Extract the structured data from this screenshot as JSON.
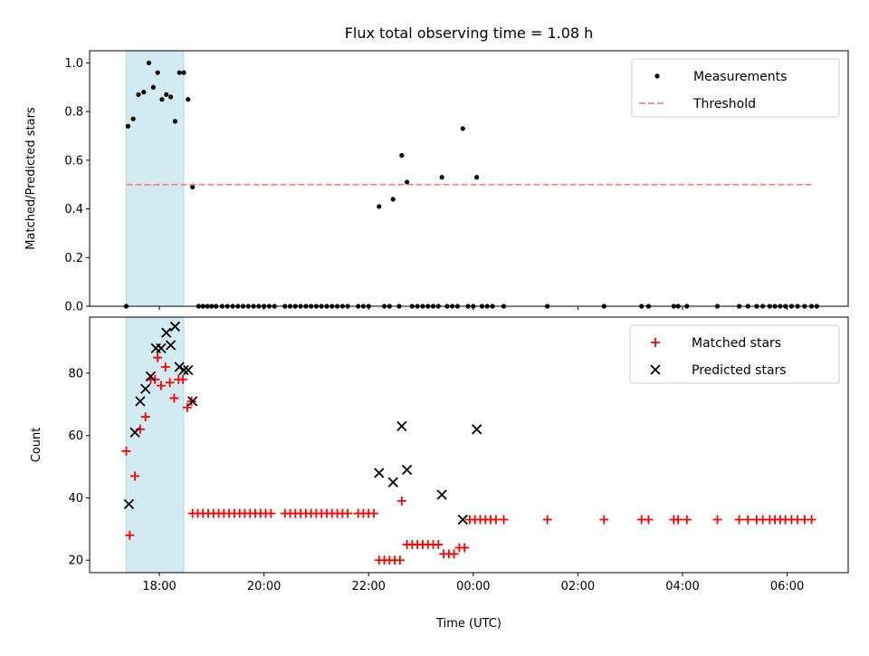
{
  "chart_data": {
    "title": "Flux total observing time = 1.08 h",
    "shaded_window": {
      "x0": "17:22",
      "x1": "18:28",
      "color": "#add8e6"
    },
    "x_axis": {
      "label": "Time (UTC)",
      "range": [
        "16:40",
        "07:10"
      ],
      "ticks": [
        "18:00",
        "20:00",
        "22:00",
        "00:00",
        "02:00",
        "04:00",
        "06:00"
      ]
    },
    "panels": [
      {
        "type": "scatter",
        "ylabel": "Matched/Predicted stars",
        "ylim": [
          0,
          1.05
        ],
        "yticks": [
          "0.0",
          "0.2",
          "0.4",
          "0.6",
          "0.8",
          "1.0"
        ],
        "legend_position": "top-right",
        "series": [
          {
            "name": "Measurements",
            "marker": "dot",
            "color": "#000000",
            "points": [
              [
                "17:22",
                0
              ],
              [
                "17:24",
                0.74
              ],
              [
                "17:30",
                0.77
              ],
              [
                "17:36",
                0.87
              ],
              [
                "17:42",
                0.88
              ],
              [
                "17:48",
                1.0
              ],
              [
                "17:53",
                0.9
              ],
              [
                "17:58",
                0.96
              ],
              [
                "18:03",
                0.85
              ],
              [
                "18:08",
                0.87
              ],
              [
                "18:13",
                0.86
              ],
              [
                "18:18",
                0.76
              ],
              [
                "18:23",
                0.96
              ],
              [
                "18:28",
                0.96
              ],
              [
                "18:33",
                0.85
              ],
              [
                "18:38",
                0.49
              ],
              [
                "18:45",
                0
              ],
              [
                "18:50",
                0
              ],
              [
                "18:55",
                0
              ],
              [
                "19:00",
                0
              ],
              [
                "19:05",
                0
              ],
              [
                "19:12",
                0
              ],
              [
                "19:18",
                0
              ],
              [
                "19:24",
                0
              ],
              [
                "19:30",
                0
              ],
              [
                "19:36",
                0
              ],
              [
                "19:42",
                0
              ],
              [
                "19:48",
                0
              ],
              [
                "19:54",
                0
              ],
              [
                "20:00",
                0
              ],
              [
                "20:06",
                0
              ],
              [
                "20:12",
                0
              ],
              [
                "20:24",
                0
              ],
              [
                "20:30",
                0
              ],
              [
                "20:36",
                0
              ],
              [
                "20:42",
                0
              ],
              [
                "20:48",
                0
              ],
              [
                "20:54",
                0
              ],
              [
                "21:00",
                0
              ],
              [
                "21:06",
                0
              ],
              [
                "21:12",
                0
              ],
              [
                "21:18",
                0
              ],
              [
                "21:24",
                0
              ],
              [
                "21:30",
                0
              ],
              [
                "21:36",
                0
              ],
              [
                "21:48",
                0
              ],
              [
                "21:54",
                0
              ],
              [
                "22:00",
                0
              ],
              [
                "22:12",
                0.41
              ],
              [
                "22:18",
                0
              ],
              [
                "22:24",
                0
              ],
              [
                "22:28",
                0.44
              ],
              [
                "22:35",
                0
              ],
              [
                "22:38",
                0.62
              ],
              [
                "22:44",
                0.51
              ],
              [
                "22:50",
                0
              ],
              [
                "22:56",
                0
              ],
              [
                "23:02",
                0
              ],
              [
                "23:08",
                0
              ],
              [
                "23:14",
                0
              ],
              [
                "23:20",
                0
              ],
              [
                "23:24",
                0.53
              ],
              [
                "23:30",
                0
              ],
              [
                "23:36",
                0
              ],
              [
                "23:42",
                0
              ],
              [
                "23:48",
                0.73
              ],
              [
                "23:54",
                0
              ],
              [
                "24:00",
                0
              ],
              [
                "24:04",
                0.53
              ],
              [
                "24:10",
                0
              ],
              [
                "24:16",
                0
              ],
              [
                "24:22",
                0
              ],
              [
                "24:35",
                0
              ],
              [
                "25:25",
                0
              ],
              [
                "26:30",
                0
              ],
              [
                "27:13",
                0
              ],
              [
                "27:21",
                0
              ],
              [
                "27:50",
                0
              ],
              [
                "27:55",
                0
              ],
              [
                "28:05",
                0
              ],
              [
                "28:40",
                0
              ],
              [
                "29:05",
                0
              ],
              [
                "29:15",
                0
              ],
              [
                "29:25",
                0
              ],
              [
                "29:32",
                0
              ],
              [
                "29:40",
                0
              ],
              [
                "29:46",
                0
              ],
              [
                "29:52",
                0
              ],
              [
                "29:58",
                0
              ],
              [
                "30:05",
                0
              ],
              [
                "30:12",
                0
              ],
              [
                "30:20",
                0
              ],
              [
                "30:28",
                0
              ],
              [
                "30:34",
                0
              ]
            ]
          },
          {
            "name": "Threshold",
            "style": "dashed",
            "color": "#ff7f7f",
            "points": [
              [
                "17:22",
                0.5
              ],
              [
                "30:28",
                0.5
              ]
            ]
          }
        ]
      },
      {
        "type": "scatter",
        "ylabel": "Count",
        "ylim": [
          16,
          98
        ],
        "yticks": [
          "20",
          "40",
          "60",
          "80"
        ],
        "legend_position": "top-right",
        "series": [
          {
            "name": "Matched stars",
            "marker": "plus",
            "color": "#ff0000",
            "points": [
              [
                "17:22",
                55
              ],
              [
                "17:26",
                28
              ],
              [
                "17:32",
                47
              ],
              [
                "17:38",
                62
              ],
              [
                "17:44",
                66
              ],
              [
                "17:50",
                78
              ],
              [
                "17:55",
                78
              ],
              [
                "17:58",
                85
              ],
              [
                "18:02",
                76
              ],
              [
                "18:07",
                82
              ],
              [
                "18:12",
                77
              ],
              [
                "18:17",
                72
              ],
              [
                "18:22",
                78
              ],
              [
                "18:27",
                78
              ],
              [
                "18:32",
                69
              ],
              [
                "18:37",
                71
              ],
              [
                "18:38",
                35
              ],
              [
                "18:44",
                35
              ],
              [
                "18:50",
                35
              ],
              [
                "18:56",
                35
              ],
              [
                "19:02",
                35
              ],
              [
                "19:08",
                35
              ],
              [
                "19:14",
                35
              ],
              [
                "19:20",
                35
              ],
              [
                "19:26",
                35
              ],
              [
                "19:32",
                35
              ],
              [
                "19:38",
                35
              ],
              [
                "19:44",
                35
              ],
              [
                "19:50",
                35
              ],
              [
                "19:56",
                35
              ],
              [
                "20:02",
                35
              ],
              [
                "20:08",
                35
              ],
              [
                "20:24",
                35
              ],
              [
                "20:30",
                35
              ],
              [
                "20:36",
                35
              ],
              [
                "20:42",
                35
              ],
              [
                "20:48",
                35
              ],
              [
                "20:54",
                35
              ],
              [
                "21:00",
                35
              ],
              [
                "21:06",
                35
              ],
              [
                "21:12",
                35
              ],
              [
                "21:18",
                35
              ],
              [
                "21:24",
                35
              ],
              [
                "21:30",
                35
              ],
              [
                "21:36",
                35
              ],
              [
                "21:48",
                35
              ],
              [
                "21:54",
                35
              ],
              [
                "22:00",
                35
              ],
              [
                "22:06",
                35
              ],
              [
                "22:12",
                20
              ],
              [
                "22:18",
                20
              ],
              [
                "22:24",
                20
              ],
              [
                "22:30",
                20
              ],
              [
                "22:36",
                20
              ],
              [
                "22:38",
                39
              ],
              [
                "22:44",
                25
              ],
              [
                "22:50",
                25
              ],
              [
                "22:56",
                25
              ],
              [
                "23:02",
                25
              ],
              [
                "23:08",
                25
              ],
              [
                "23:14",
                25
              ],
              [
                "23:20",
                25
              ],
              [
                "23:26",
                22
              ],
              [
                "23:32",
                22
              ],
              [
                "23:38",
                22
              ],
              [
                "23:44",
                24
              ],
              [
                "23:50",
                24
              ],
              [
                "23:56",
                33
              ],
              [
                "24:02",
                33
              ],
              [
                "24:08",
                33
              ],
              [
                "24:14",
                33
              ],
              [
                "24:20",
                33
              ],
              [
                "24:26",
                33
              ],
              [
                "24:35",
                33
              ],
              [
                "25:25",
                33
              ],
              [
                "26:30",
                33
              ],
              [
                "27:13",
                33
              ],
              [
                "27:21",
                33
              ],
              [
                "27:50",
                33
              ],
              [
                "27:55",
                33
              ],
              [
                "28:05",
                33
              ],
              [
                "28:40",
                33
              ],
              [
                "29:05",
                33
              ],
              [
                "29:15",
                33
              ],
              [
                "29:25",
                33
              ],
              [
                "29:32",
                33
              ],
              [
                "29:40",
                33
              ],
              [
                "29:46",
                33
              ],
              [
                "29:52",
                33
              ],
              [
                "29:58",
                33
              ],
              [
                "30:05",
                33
              ],
              [
                "30:12",
                33
              ],
              [
                "30:20",
                33
              ],
              [
                "30:28",
                33
              ]
            ]
          },
          {
            "name": "Predicted stars",
            "marker": "x",
            "color": "#000000",
            "points": [
              [
                "17:25",
                38
              ],
              [
                "17:32",
                61
              ],
              [
                "17:38",
                71
              ],
              [
                "17:44",
                75
              ],
              [
                "17:50",
                79
              ],
              [
                "17:56",
                88
              ],
              [
                "18:02",
                88
              ],
              [
                "18:08",
                93
              ],
              [
                "18:13",
                89
              ],
              [
                "18:18",
                95
              ],
              [
                "18:23",
                82
              ],
              [
                "18:28",
                81
              ],
              [
                "18:33",
                81
              ],
              [
                "18:38",
                71
              ],
              [
                "22:12",
                48
              ],
              [
                "22:28",
                45
              ],
              [
                "22:38",
                63
              ],
              [
                "22:44",
                49
              ],
              [
                "23:24",
                41
              ],
              [
                "23:48",
                33
              ],
              [
                "24:04",
                62
              ]
            ]
          }
        ]
      }
    ]
  }
}
